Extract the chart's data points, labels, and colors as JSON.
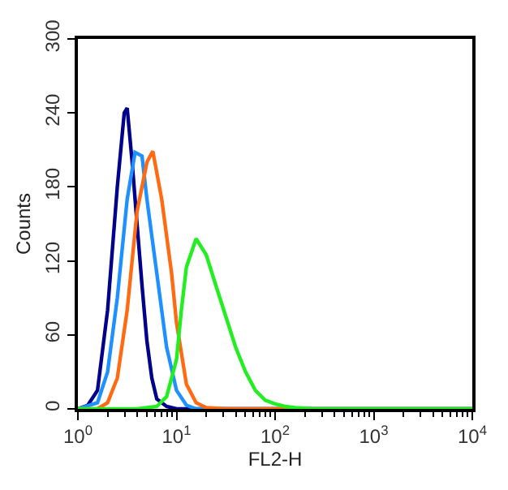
{
  "chart_data": {
    "type": "line",
    "xlabel": "FL2-H",
    "ylabel": "Counts",
    "log": "x",
    "xlim": [
      1,
      10000
    ],
    "xticks": [
      {
        "value": 1,
        "label": "10$^{0}$"
      },
      {
        "value": 10,
        "label": "10$^{1}$"
      },
      {
        "value": 100,
        "label": "10$^{2}$"
      },
      {
        "value": 1000,
        "label": "10$^{3}$"
      },
      {
        "value": 10000,
        "label": "10$^{4}$"
      }
    ],
    "ylim": [
      0,
      300
    ],
    "yticks": [
      0,
      60,
      120,
      180,
      240,
      300
    ],
    "marker": "none",
    "line_style": "solid",
    "series": [
      {
        "color": "#00008b",
        "x": [
          1,
          1.26,
          1.58,
          2.0,
          2.51,
          2.95,
          3.16,
          3.55,
          3.98,
          4.47,
          5.01,
          5.62,
          6.31,
          7.94,
          10,
          10000
        ],
        "values": [
          0,
          3,
          15,
          80,
          180,
          240,
          244,
          200,
          150,
          100,
          55,
          25,
          8,
          2,
          0,
          0
        ]
      },
      {
        "color": "#1e90ff",
        "x": [
          1,
          1.58,
          2.0,
          2.51,
          3.16,
          3.8,
          4.47,
          5.01,
          6.31,
          7.94,
          10,
          12.6,
          15.8,
          10000
        ],
        "values": [
          0,
          5,
          30,
          90,
          170,
          208,
          205,
          170,
          110,
          50,
          15,
          3,
          0,
          0
        ]
      },
      {
        "color": "#ff6a13",
        "x": [
          1,
          1.58,
          2.0,
          2.51,
          3.16,
          3.98,
          5.01,
          5.75,
          7.08,
          8.91,
          10,
          12.6,
          15.8,
          20,
          31.6,
          10000
        ],
        "values": [
          0,
          0,
          5,
          25,
          80,
          160,
          200,
          209,
          170,
          110,
          70,
          20,
          5,
          1,
          0,
          0
        ]
      },
      {
        "color": "#22ee22",
        "x": [
          1,
          3.98,
          6.31,
          7.94,
          10,
          11.2,
          12.6,
          15.8,
          20,
          25.1,
          31.6,
          39.8,
          50.1,
          63.1,
          79.4,
          100,
          126,
          158,
          251,
          10000
        ],
        "values": [
          0,
          0,
          2,
          10,
          40,
          80,
          115,
          138,
          125,
          100,
          75,
          50,
          30,
          15,
          7,
          4,
          2,
          1,
          0,
          0
        ]
      }
    ]
  }
}
